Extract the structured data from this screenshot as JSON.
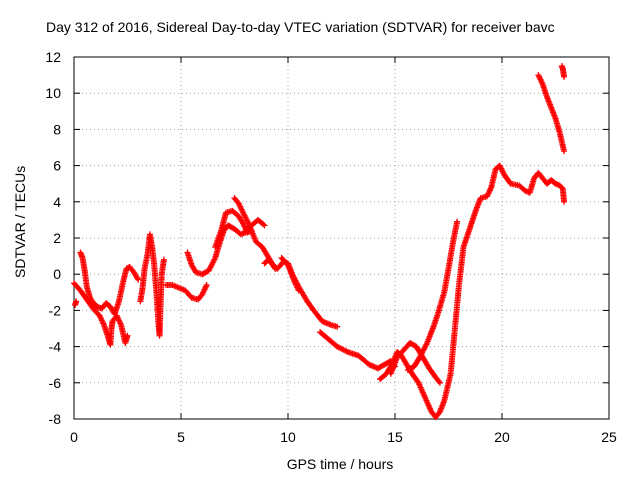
{
  "chart_data": {
    "type": "scatter",
    "title": "Day 312 of 2016, Sidereal Day-to-day VTEC variation (SDTVAR) for receiver bavc",
    "xlabel": "GPS time / hours",
    "ylabel": "SDTVAR / TECUs",
    "xlim": [
      0,
      25
    ],
    "ylim": [
      -8,
      12
    ],
    "xticks": [
      "0",
      "5",
      "10",
      "15",
      "20",
      "25"
    ],
    "yticks": [
      "-8",
      "-6",
      "-4",
      "-2",
      "0",
      "2",
      "4",
      "6",
      "8",
      "10",
      "12"
    ],
    "grid": true,
    "marker": "+",
    "color": "#ff0000",
    "series": [
      {
        "name": "SDTVAR",
        "segments": [
          [
            [
              0,
              -0.5
            ],
            [
              0.3,
              -0.9
            ],
            [
              0.6,
              -1.4
            ],
            [
              0.9,
              -1.9
            ],
            [
              1.2,
              -2.3
            ],
            [
              1.4,
              -2.8
            ],
            [
              1.6,
              -3.5
            ],
            [
              1.7,
              -3.9
            ],
            [
              1.75,
              -3.0
            ],
            [
              1.8,
              -2.6
            ],
            [
              2.0,
              -2.3
            ],
            [
              2.2,
              -2.8
            ],
            [
              2.4,
              -3.8
            ],
            [
              2.5,
              -3.4
            ]
          ],
          [
            [
              0.05,
              -1.7
            ],
            [
              0.1,
              -1.5
            ]
          ],
          [
            [
              0.3,
              1.2
            ],
            [
              0.4,
              0.9
            ],
            [
              0.5,
              0.2
            ],
            [
              0.6,
              -0.7
            ],
            [
              0.75,
              -1.3
            ],
            [
              0.9,
              -1.6
            ],
            [
              1.1,
              -1.8
            ],
            [
              1.3,
              -1.9
            ],
            [
              1.5,
              -1.6
            ],
            [
              1.7,
              -1.8
            ],
            [
              1.9,
              -2.2
            ],
            [
              2.1,
              -1.5
            ],
            [
              2.3,
              -0.4
            ],
            [
              2.45,
              0.3
            ],
            [
              2.6,
              0.4
            ],
            [
              2.8,
              0.1
            ],
            [
              3.0,
              -0.3
            ]
          ],
          [
            [
              3.1,
              -1.5
            ],
            [
              3.2,
              -0.8
            ],
            [
              3.3,
              0.3
            ],
            [
              3.45,
              1.2
            ],
            [
              3.55,
              2.2
            ],
            [
              3.65,
              1.5
            ],
            [
              3.75,
              0.5
            ],
            [
              3.85,
              -1.0
            ],
            [
              3.95,
              -2.8
            ],
            [
              4.0,
              -3.4
            ],
            [
              4.05,
              -1.5
            ],
            [
              4.1,
              0.0
            ],
            [
              4.2,
              0.8
            ]
          ],
          [
            [
              4.3,
              -0.6
            ],
            [
              4.6,
              -0.6
            ],
            [
              4.9,
              -0.75
            ],
            [
              5.2,
              -0.9
            ],
            [
              5.5,
              -1.3
            ],
            [
              5.8,
              -1.4
            ],
            [
              6.0,
              -1.1
            ],
            [
              6.2,
              -0.6
            ]
          ],
          [
            [
              5.3,
              1.2
            ],
            [
              5.5,
              0.5
            ],
            [
              5.7,
              0.1
            ],
            [
              6.0,
              0.0
            ],
            [
              6.3,
              0.2
            ],
            [
              6.6,
              0.9
            ],
            [
              6.8,
              1.7
            ],
            [
              7.0,
              2.4
            ],
            [
              7.2,
              2.7
            ],
            [
              7.5,
              2.5
            ],
            [
              7.8,
              2.2
            ],
            [
              8.0,
              2.3
            ],
            [
              8.3,
              2.7
            ],
            [
              8.6,
              3.0
            ],
            [
              8.9,
              2.7
            ]
          ],
          [
            [
              6.6,
              1.5
            ],
            [
              6.9,
              2.5
            ],
            [
              7.1,
              3.4
            ],
            [
              7.4,
              3.5
            ],
            [
              7.7,
              3.2
            ],
            [
              7.9,
              2.8
            ],
            [
              8.1,
              2.3
            ],
            [
              8.3,
              2.4
            ]
          ],
          [
            [
              7.5,
              4.2
            ],
            [
              7.7,
              3.9
            ],
            [
              7.9,
              3.4
            ],
            [
              8.2,
              2.7
            ],
            [
              8.5,
              1.8
            ],
            [
              8.8,
              1.5
            ],
            [
              9.0,
              1.1
            ],
            [
              9.2,
              0.7
            ],
            [
              9.4,
              0.3
            ]
          ],
          [
            [
              8.9,
              0.6
            ],
            [
              9.1,
              0.8
            ],
            [
              9.3,
              0.5
            ],
            [
              9.5,
              0.3
            ],
            [
              9.8,
              0.7
            ],
            [
              10.0,
              0.6
            ],
            [
              10.2,
              0.0
            ],
            [
              10.5,
              -0.7
            ],
            [
              10.9,
              -1.5
            ],
            [
              11.2,
              -2.0
            ],
            [
              11.6,
              -2.6
            ],
            [
              12.0,
              -2.8
            ],
            [
              12.3,
              -2.9
            ]
          ],
          [
            [
              9.7,
              0.9
            ],
            [
              10.0,
              0.5
            ],
            [
              10.3,
              -0.4
            ],
            [
              10.5,
              -0.9
            ]
          ],
          [
            [
              11.5,
              -3.2
            ],
            [
              11.9,
              -3.6
            ],
            [
              12.3,
              -4.0
            ],
            [
              12.8,
              -4.3
            ],
            [
              13.3,
              -4.5
            ],
            [
              13.8,
              -5.0
            ],
            [
              14.2,
              -5.2
            ],
            [
              14.5,
              -5.0
            ],
            [
              14.8,
              -4.8
            ],
            [
              15.0,
              -5.1
            ]
          ],
          [
            [
              14.3,
              -5.8
            ],
            [
              14.6,
              -5.5
            ],
            [
              14.9,
              -4.9
            ],
            [
              15.1,
              -4.3
            ],
            [
              15.3,
              -4.5
            ],
            [
              15.5,
              -4.9
            ],
            [
              15.8,
              -5.5
            ],
            [
              16.1,
              -6.0
            ],
            [
              16.4,
              -6.8
            ],
            [
              16.7,
              -7.6
            ],
            [
              16.9,
              -7.9
            ],
            [
              17.1,
              -7.6
            ],
            [
              17.3,
              -7.0
            ],
            [
              17.6,
              -5.5
            ],
            [
              17.8,
              -3.0
            ],
            [
              18.0,
              -0.5
            ],
            [
              18.2,
              1.5
            ],
            [
              18.4,
              2.2
            ],
            [
              18.6,
              2.9
            ],
            [
              18.8,
              3.6
            ],
            [
              19.0,
              4.2
            ],
            [
              19.3,
              4.3
            ],
            [
              19.5,
              4.8
            ],
            [
              19.7,
              5.8
            ],
            [
              19.9,
              6.0
            ],
            [
              20.1,
              5.5
            ],
            [
              20.4,
              5.0
            ],
            [
              20.8,
              4.9
            ],
            [
              21.1,
              4.6
            ],
            [
              21.3,
              4.5
            ],
            [
              21.5,
              5.3
            ],
            [
              21.7,
              5.6
            ],
            [
              21.9,
              5.3
            ],
            [
              22.1,
              5.0
            ],
            [
              22.3,
              5.2
            ],
            [
              22.5,
              5.0
            ],
            [
              22.7,
              4.9
            ],
            [
              22.85,
              4.7
            ]
          ],
          [
            [
              14.8,
              -5.5
            ],
            [
              15.1,
              -4.6
            ],
            [
              15.4,
              -4.2
            ],
            [
              15.7,
              -3.8
            ],
            [
              16.0,
              -4.0
            ],
            [
              16.3,
              -4.6
            ],
            [
              16.6,
              -5.2
            ],
            [
              16.9,
              -5.7
            ],
            [
              17.1,
              -6.0
            ]
          ],
          [
            [
              15.6,
              -5.3
            ],
            [
              15.9,
              -5.1
            ],
            [
              16.2,
              -4.5
            ],
            [
              16.5,
              -3.8
            ],
            [
              16.8,
              -2.9
            ],
            [
              17.0,
              -2.2
            ],
            [
              17.3,
              -1.0
            ],
            [
              17.5,
              0.3
            ],
            [
              17.7,
              1.7
            ],
            [
              17.9,
              2.9
            ]
          ],
          [
            [
              21.7,
              11.0
            ],
            [
              21.9,
              10.5
            ],
            [
              22.1,
              9.8
            ],
            [
              22.3,
              9.2
            ],
            [
              22.5,
              8.6
            ],
            [
              22.7,
              7.8
            ],
            [
              22.9,
              6.8
            ]
          ],
          [
            [
              22.85,
              4.6
            ],
            [
              22.9,
              4.0
            ]
          ],
          [
            [
              22.8,
              11.5
            ],
            [
              22.85,
              11.3
            ],
            [
              22.9,
              10.9
            ]
          ]
        ]
      }
    ]
  }
}
